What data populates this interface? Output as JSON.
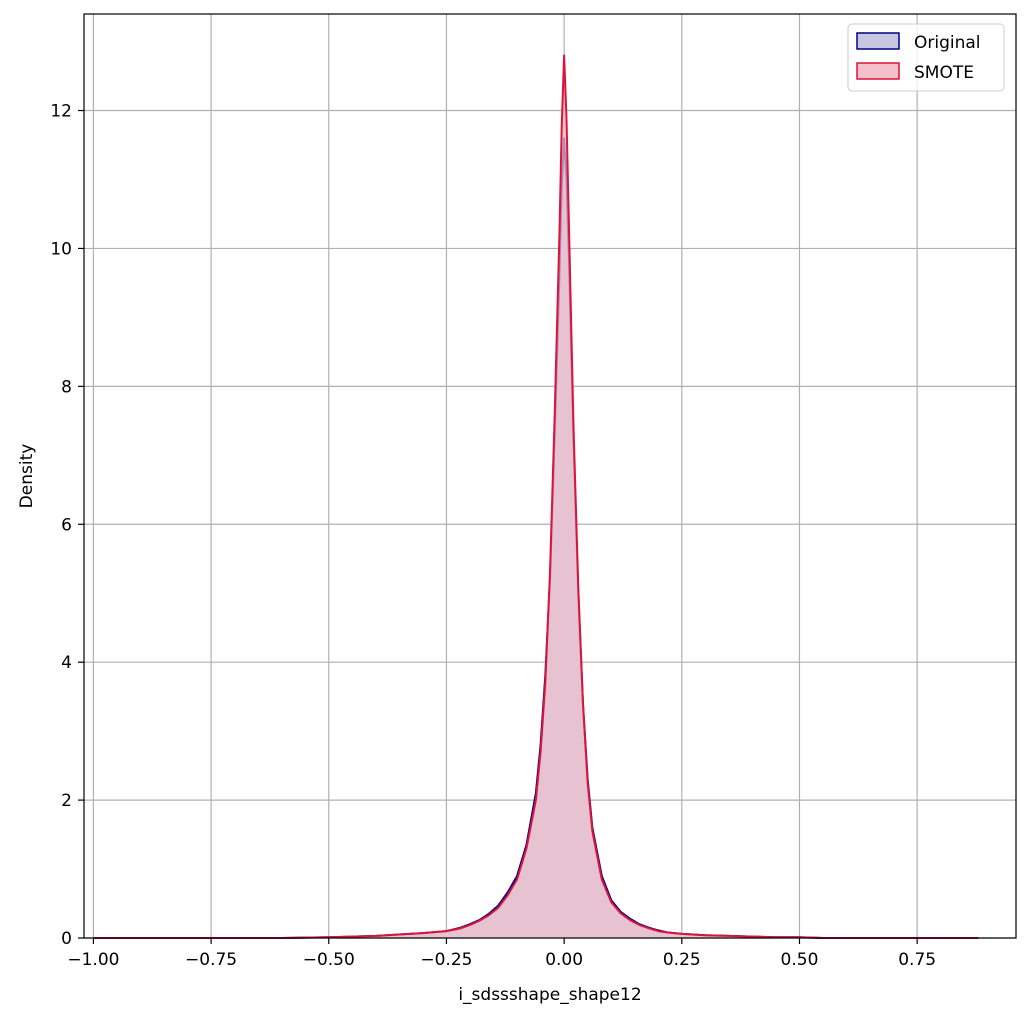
{
  "chart_data": {
    "type": "area",
    "xlabel": "i_sdssshape_shape12",
    "ylabel": "Density",
    "xlim": [
      -1.02,
      0.96
    ],
    "ylim": [
      0,
      13.4
    ],
    "x_ticks": [
      -1.0,
      -0.75,
      -0.5,
      -0.25,
      0.0,
      0.25,
      0.5,
      0.75
    ],
    "x_tick_labels": [
      "−1.00",
      "−0.75",
      "−0.50",
      "−0.25",
      "0.00",
      "0.25",
      "0.50",
      "0.75"
    ],
    "y_ticks": [
      0,
      2,
      4,
      6,
      8,
      10,
      12
    ],
    "y_tick_labels": [
      "0",
      "2",
      "4",
      "6",
      "8",
      "10",
      "12"
    ],
    "grid": true,
    "legend_position": "top-right",
    "series": [
      {
        "name": "Original",
        "line_color": "#000080",
        "fill_color": "#c6c6e3",
        "x": [
          -1.0,
          -0.8,
          -0.6,
          -0.5,
          -0.45,
          -0.4,
          -0.35,
          -0.3,
          -0.25,
          -0.22,
          -0.2,
          -0.18,
          -0.16,
          -0.14,
          -0.12,
          -0.1,
          -0.08,
          -0.06,
          -0.05,
          -0.04,
          -0.03,
          -0.02,
          -0.01,
          -0.005,
          0.0,
          0.005,
          0.01,
          0.02,
          0.03,
          0.04,
          0.05,
          0.06,
          0.08,
          0.1,
          0.12,
          0.14,
          0.16,
          0.18,
          0.2,
          0.22,
          0.25,
          0.3,
          0.35,
          0.4,
          0.45,
          0.5,
          0.55,
          0.6,
          0.7,
          0.8,
          0.88
        ],
        "y": [
          0.0,
          0.0,
          0.0,
          0.01,
          0.02,
          0.03,
          0.05,
          0.07,
          0.1,
          0.15,
          0.2,
          0.26,
          0.35,
          0.47,
          0.66,
          0.9,
          1.35,
          2.1,
          2.8,
          3.8,
          5.2,
          7.3,
          9.6,
          10.9,
          11.6,
          11.0,
          9.9,
          7.2,
          5.0,
          3.4,
          2.3,
          1.6,
          0.9,
          0.55,
          0.38,
          0.28,
          0.2,
          0.15,
          0.11,
          0.08,
          0.06,
          0.04,
          0.03,
          0.02,
          0.01,
          0.01,
          0.0,
          0.0,
          0.0,
          0.0,
          0.0
        ]
      },
      {
        "name": "SMOTE",
        "line_color": "#dc143c",
        "fill_color": "#f4c0cb",
        "x": [
          -1.0,
          -0.8,
          -0.6,
          -0.5,
          -0.45,
          -0.4,
          -0.35,
          -0.3,
          -0.25,
          -0.22,
          -0.2,
          -0.18,
          -0.16,
          -0.14,
          -0.12,
          -0.1,
          -0.08,
          -0.06,
          -0.05,
          -0.04,
          -0.03,
          -0.02,
          -0.01,
          -0.005,
          0.0,
          0.005,
          0.01,
          0.02,
          0.03,
          0.04,
          0.05,
          0.06,
          0.08,
          0.1,
          0.12,
          0.14,
          0.16,
          0.18,
          0.2,
          0.22,
          0.25,
          0.3,
          0.35,
          0.4,
          0.45,
          0.5,
          0.55,
          0.6,
          0.7,
          0.8,
          0.88
        ],
        "y": [
          0.0,
          0.0,
          0.0,
          0.01,
          0.02,
          0.03,
          0.05,
          0.07,
          0.1,
          0.14,
          0.19,
          0.25,
          0.33,
          0.44,
          0.62,
          0.85,
          1.3,
          2.0,
          2.7,
          3.7,
          5.3,
          7.6,
          10.2,
          11.8,
          12.8,
          11.9,
          10.4,
          7.4,
          5.1,
          3.4,
          2.25,
          1.55,
          0.85,
          0.52,
          0.36,
          0.26,
          0.19,
          0.14,
          0.1,
          0.08,
          0.06,
          0.04,
          0.03,
          0.02,
          0.01,
          0.01,
          0.0,
          0.0,
          0.0,
          0.0,
          0.0
        ]
      }
    ]
  }
}
